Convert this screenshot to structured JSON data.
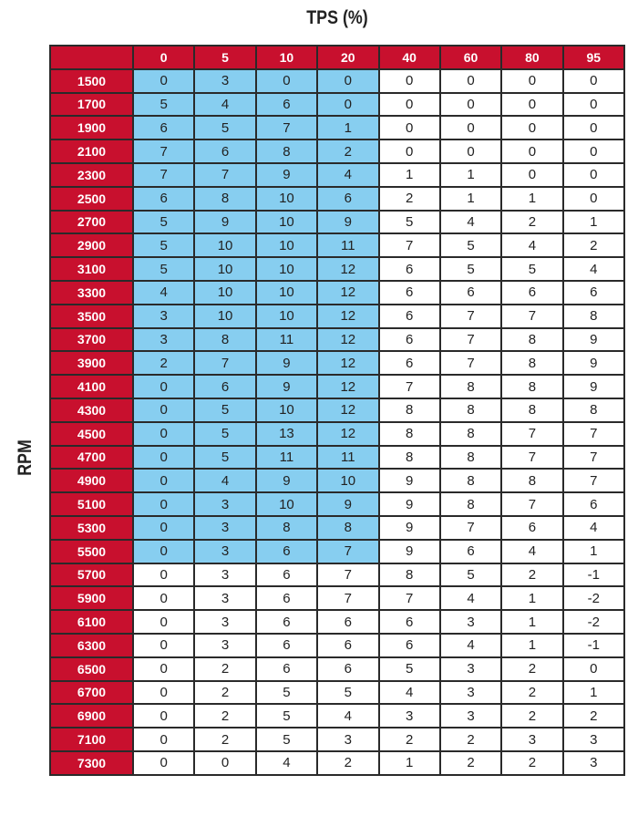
{
  "chart_data": {
    "type": "table",
    "title": "TPS (%)",
    "xlabel": "TPS (%)",
    "ylabel": "RPM",
    "columns": [
      0,
      5,
      10,
      20,
      40,
      60,
      80,
      95
    ],
    "rows": [
      {
        "rpm": 1500,
        "values": [
          0,
          3,
          0,
          0,
          0,
          0,
          0,
          0
        ]
      },
      {
        "rpm": 1700,
        "values": [
          5,
          4,
          6,
          0,
          0,
          0,
          0,
          0
        ]
      },
      {
        "rpm": 1900,
        "values": [
          6,
          5,
          7,
          1,
          0,
          0,
          0,
          0
        ]
      },
      {
        "rpm": 2100,
        "values": [
          7,
          6,
          8,
          2,
          0,
          0,
          0,
          0
        ]
      },
      {
        "rpm": 2300,
        "values": [
          7,
          7,
          9,
          4,
          1,
          1,
          0,
          0
        ]
      },
      {
        "rpm": 2500,
        "values": [
          6,
          8,
          10,
          6,
          2,
          1,
          1,
          0
        ]
      },
      {
        "rpm": 2700,
        "values": [
          5,
          9,
          10,
          9,
          5,
          4,
          2,
          1
        ]
      },
      {
        "rpm": 2900,
        "values": [
          5,
          10,
          10,
          11,
          7,
          5,
          4,
          2
        ]
      },
      {
        "rpm": 3100,
        "values": [
          5,
          10,
          10,
          12,
          6,
          5,
          5,
          4
        ]
      },
      {
        "rpm": 3300,
        "values": [
          4,
          10,
          10,
          12,
          6,
          6,
          6,
          6
        ]
      },
      {
        "rpm": 3500,
        "values": [
          3,
          10,
          10,
          12,
          6,
          7,
          7,
          8
        ]
      },
      {
        "rpm": 3700,
        "values": [
          3,
          8,
          11,
          12,
          6,
          7,
          8,
          9
        ]
      },
      {
        "rpm": 3900,
        "values": [
          2,
          7,
          9,
          12,
          6,
          7,
          8,
          9
        ]
      },
      {
        "rpm": 4100,
        "values": [
          0,
          6,
          9,
          12,
          7,
          8,
          8,
          9
        ]
      },
      {
        "rpm": 4300,
        "values": [
          0,
          5,
          10,
          12,
          8,
          8,
          8,
          8
        ]
      },
      {
        "rpm": 4500,
        "values": [
          0,
          5,
          13,
          12,
          8,
          8,
          7,
          7
        ]
      },
      {
        "rpm": 4700,
        "values": [
          0,
          5,
          11,
          11,
          8,
          8,
          7,
          7
        ]
      },
      {
        "rpm": 4900,
        "values": [
          0,
          4,
          9,
          10,
          9,
          8,
          8,
          7
        ]
      },
      {
        "rpm": 5100,
        "values": [
          0,
          3,
          10,
          9,
          9,
          8,
          7,
          6
        ]
      },
      {
        "rpm": 5300,
        "values": [
          0,
          3,
          8,
          8,
          9,
          7,
          6,
          4
        ]
      },
      {
        "rpm": 5500,
        "values": [
          0,
          3,
          6,
          7,
          9,
          6,
          4,
          1
        ]
      },
      {
        "rpm": 5700,
        "values": [
          0,
          3,
          6,
          7,
          8,
          5,
          2,
          -1
        ]
      },
      {
        "rpm": 5900,
        "values": [
          0,
          3,
          6,
          7,
          7,
          4,
          1,
          -2
        ]
      },
      {
        "rpm": 6100,
        "values": [
          0,
          3,
          6,
          6,
          6,
          3,
          1,
          -2
        ]
      },
      {
        "rpm": 6300,
        "values": [
          0,
          3,
          6,
          6,
          6,
          4,
          1,
          -1
        ]
      },
      {
        "rpm": 6500,
        "values": [
          0,
          2,
          6,
          6,
          5,
          3,
          2,
          0
        ]
      },
      {
        "rpm": 6700,
        "values": [
          0,
          2,
          5,
          5,
          4,
          3,
          2,
          1
        ]
      },
      {
        "rpm": 6900,
        "values": [
          0,
          2,
          5,
          4,
          3,
          3,
          2,
          2
        ]
      },
      {
        "rpm": 7100,
        "values": [
          0,
          2,
          5,
          3,
          2,
          2,
          3,
          3
        ]
      },
      {
        "rpm": 7300,
        "values": [
          0,
          0,
          4,
          2,
          1,
          2,
          2,
          3
        ]
      }
    ],
    "highlight": {
      "rpm_max": 5500,
      "tps_max": 20,
      "color": "#87cef0"
    },
    "header_color": "#c8102e"
  }
}
